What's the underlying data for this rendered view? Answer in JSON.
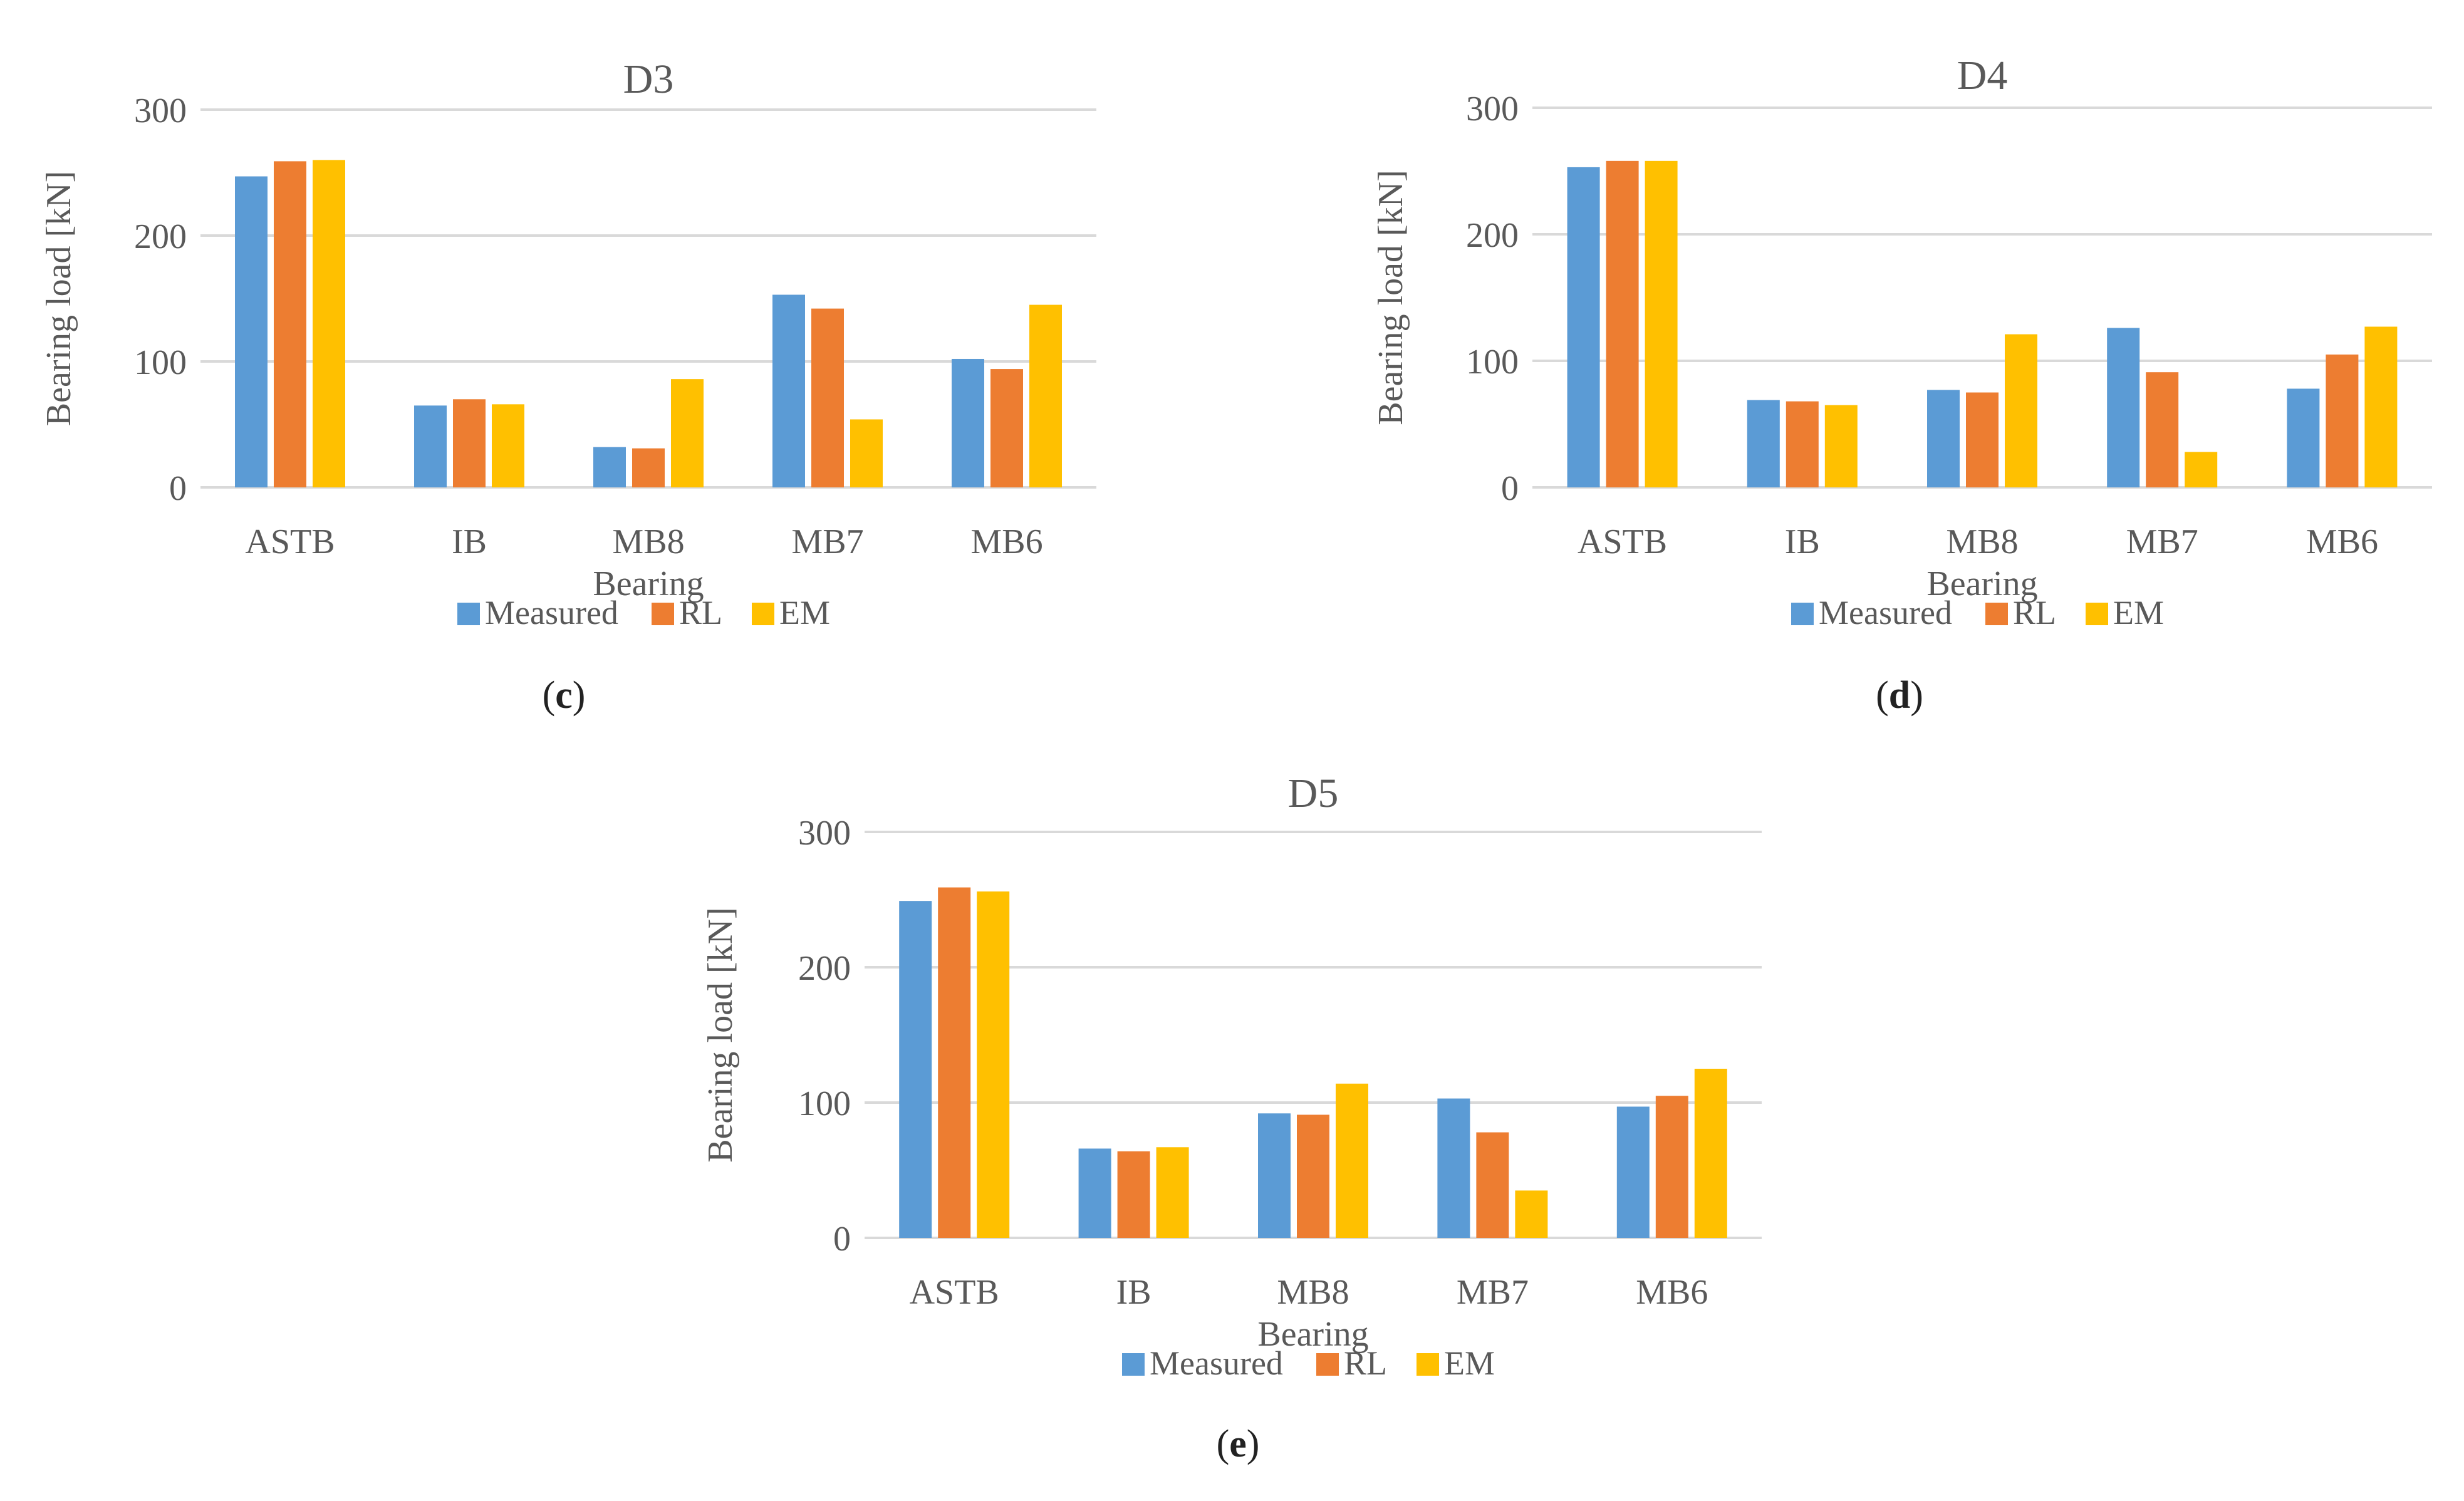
{
  "colors": {
    "Measured": "#5B9BD5",
    "RL": "#ED7D31",
    "EM": "#FFC000",
    "grid": "#D9D9D9",
    "text": "#595959"
  },
  "chart_data": [
    {
      "type": "bar",
      "title": "D3",
      "xlabel": "Bearing",
      "ylabel": "Bearing load [kN]",
      "ylim": [
        0,
        300
      ],
      "yticks": [
        0,
        100,
        200,
        300
      ],
      "categories": [
        "ASTB",
        "IB",
        "MB8",
        "MB7",
        "MB6"
      ],
      "series": [
        {
          "name": "Measured",
          "values": [
            247,
            65,
            32,
            153,
            102
          ]
        },
        {
          "name": "RL",
          "values": [
            259,
            70,
            31,
            142,
            94
          ]
        },
        {
          "name": "EM",
          "values": [
            260,
            66,
            86,
            54,
            145
          ]
        }
      ],
      "legend": "bottom",
      "caption": "c"
    },
    {
      "type": "bar",
      "title": "D4",
      "xlabel": "Bearing",
      "ylabel": "Bearing load [kN]",
      "ylim": [
        0,
        300
      ],
      "yticks": [
        0,
        100,
        200,
        300
      ],
      "categories": [
        "ASTB",
        "IB",
        "MB8",
        "MB7",
        "MB6"
      ],
      "series": [
        {
          "name": "Measured",
          "values": [
            253,
            69,
            77,
            126,
            78
          ]
        },
        {
          "name": "RL",
          "values": [
            258,
            68,
            75,
            91,
            105
          ]
        },
        {
          "name": "EM",
          "values": [
            258,
            65,
            121,
            28,
            127
          ]
        }
      ],
      "legend": "bottom",
      "caption": "d"
    },
    {
      "type": "bar",
      "title": "D5",
      "xlabel": "Bearing",
      "ylabel": "Bearing load [kN]",
      "ylim": [
        0,
        300
      ],
      "yticks": [
        0,
        100,
        200,
        300
      ],
      "categories": [
        "ASTB",
        "IB",
        "MB8",
        "MB7",
        "MB6"
      ],
      "series": [
        {
          "name": "Measured",
          "values": [
            249,
            66,
            92,
            103,
            97
          ]
        },
        {
          "name": "RL",
          "values": [
            259,
            64,
            91,
            78,
            105
          ]
        },
        {
          "name": "EM",
          "values": [
            256,
            67,
            114,
            35,
            125
          ]
        }
      ],
      "legend": "bottom",
      "caption": "e"
    }
  ]
}
